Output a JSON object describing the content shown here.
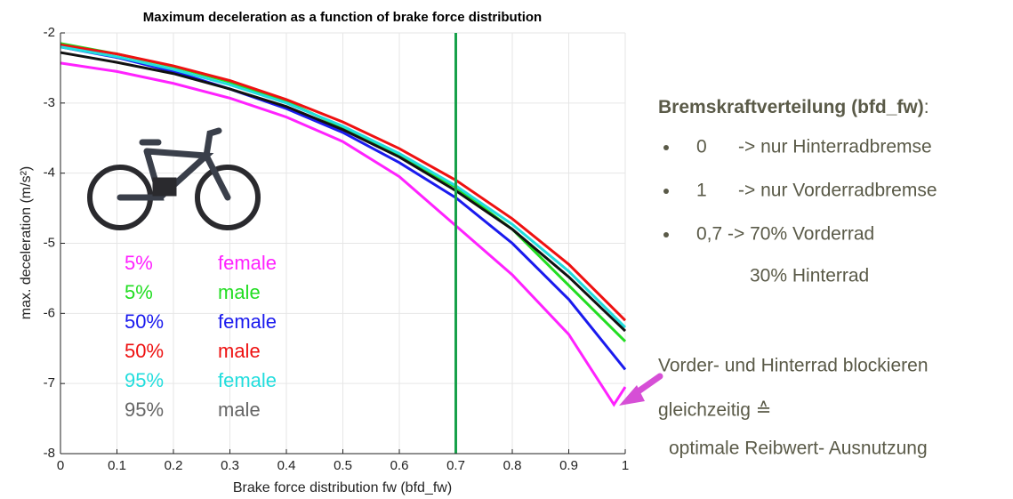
{
  "chart_data": {
    "type": "line",
    "title": "Maximum deceleration as a function of brake force distribution",
    "x_label": "Brake force distribution fw (bfd_fw)",
    "y_label": "max. deceleration (m/s²)",
    "xlim": [
      0,
      1
    ],
    "ylim": [
      -8,
      -2
    ],
    "xticks": [
      0,
      0.1,
      0.2,
      0.3,
      0.4,
      0.5,
      0.6,
      0.7,
      0.8,
      0.9,
      1
    ],
    "yticks": [
      -8,
      -7,
      -6,
      -5,
      -4,
      -3,
      -2
    ],
    "grid": true,
    "vline": {
      "value": 0.7,
      "color": "#17a14a"
    },
    "series": [
      {
        "name": "5%",
        "sex": "female",
        "color": "#ff22ff",
        "text_color": "#ff22ff",
        "x": [
          0,
          0.1,
          0.2,
          0.3,
          0.4,
          0.5,
          0.6,
          0.7,
          0.8,
          0.9,
          0.98,
          1
        ],
        "values": [
          -2.43,
          -2.55,
          -2.72,
          -2.93,
          -3.2,
          -3.55,
          -4.05,
          -4.75,
          -5.45,
          -6.3,
          -7.3,
          -7.05
        ]
      },
      {
        "name": "5%",
        "sex": "male",
        "color": "#22dd22",
        "text_color": "#22dd22",
        "x": [
          0,
          0.1,
          0.2,
          0.3,
          0.4,
          0.5,
          0.6,
          0.7,
          0.8,
          0.9,
          1
        ],
        "values": [
          -2.15,
          -2.3,
          -2.48,
          -2.7,
          -2.98,
          -3.35,
          -3.75,
          -4.2,
          -4.8,
          -5.6,
          -6.4
        ]
      },
      {
        "name": "50%",
        "sex": "female",
        "color": "#1a1aee",
        "text_color": "#1a1aee",
        "x": [
          0,
          0.1,
          0.2,
          0.3,
          0.4,
          0.5,
          0.6,
          0.7,
          0.8,
          0.9,
          1
        ],
        "values": [
          -2.2,
          -2.35,
          -2.55,
          -2.8,
          -3.08,
          -3.42,
          -3.85,
          -4.35,
          -5.0,
          -5.8,
          -6.8
        ]
      },
      {
        "name": "50%",
        "sex": "male",
        "color": "#ee1111",
        "text_color": "#ee1111",
        "x": [
          0,
          0.1,
          0.2,
          0.3,
          0.4,
          0.5,
          0.6,
          0.7,
          0.8,
          0.9,
          1
        ],
        "values": [
          -2.17,
          -2.3,
          -2.47,
          -2.68,
          -2.95,
          -3.27,
          -3.65,
          -4.1,
          -4.65,
          -5.3,
          -6.1
        ]
      },
      {
        "name": "95%",
        "sex": "female",
        "color": "#22dddd",
        "text_color": "#22dddd",
        "x": [
          0,
          0.1,
          0.2,
          0.3,
          0.4,
          0.5,
          0.6,
          0.7,
          0.8,
          0.9,
          1
        ],
        "values": [
          -2.2,
          -2.34,
          -2.52,
          -2.74,
          -3.0,
          -3.33,
          -3.72,
          -4.18,
          -4.73,
          -5.4,
          -6.2
        ]
      },
      {
        "name": "95%",
        "sex": "male",
        "color": "#111111",
        "text_color": "#666666",
        "x": [
          0,
          0.1,
          0.2,
          0.3,
          0.4,
          0.5,
          0.6,
          0.7,
          0.8,
          0.9,
          1
        ],
        "values": [
          -2.28,
          -2.42,
          -2.58,
          -2.8,
          -3.05,
          -3.38,
          -3.77,
          -4.25,
          -4.8,
          -5.48,
          -6.25
        ]
      }
    ]
  },
  "notes": {
    "heading": "Bremskraftverteilung (bfd_fw)",
    "heading_colon": ":",
    "items": [
      {
        "key": "0",
        "text": "-> nur Hinterradbremse"
      },
      {
        "key": "1",
        "text": "-> nur Vorderradbremse"
      },
      {
        "key": "0,7",
        "text": "-> 70% Vorderrad",
        "continuation": "30% Hinterrad"
      }
    ],
    "callout": [
      "Vorder- und Hinterrad blockieren",
      "gleichzeitig  ≙",
      "optimale Reibwert- Ausnutzung"
    ]
  }
}
